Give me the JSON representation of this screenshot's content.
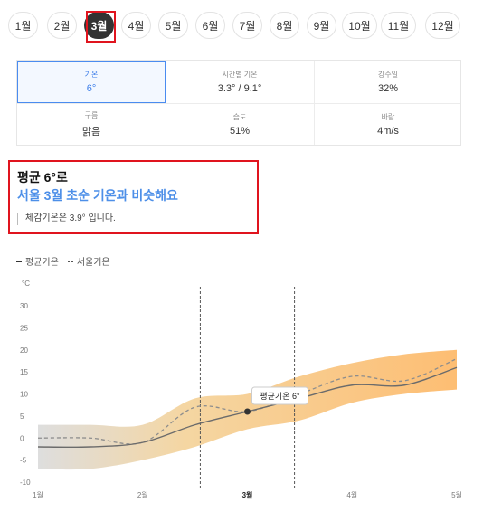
{
  "months": [
    "1월",
    "2월",
    "3월",
    "4월",
    "5월",
    "6월",
    "7월",
    "8월",
    "9월",
    "10월",
    "11월",
    "12월"
  ],
  "active_month_index": 2,
  "stats": [
    {
      "label": "기온",
      "value": "6°",
      "selected": true
    },
    {
      "label": "시간별 기온",
      "value": "3.3° / 9.1°",
      "selected": false
    },
    {
      "label": "강수일",
      "value": "32%",
      "selected": false
    },
    {
      "label": "구름",
      "value": "맑음",
      "selected": false
    },
    {
      "label": "습도",
      "value": "51%",
      "selected": false
    },
    {
      "label": "바람",
      "value": "4m/s",
      "selected": false
    }
  ],
  "summary": {
    "title": "평균 6°로",
    "subtitle": "서울 3월 초순 기온과 비슷해요",
    "note": "체감기온은 3.9° 입니다."
  },
  "legend": {
    "avg": "평균기온",
    "past": "서울기온"
  },
  "tooltip": "평균기온 6°",
  "colors": {
    "accent": "#4d8fe8",
    "band_top": "#fdb25a",
    "band_bottom": "#d6d6d6",
    "highlight": "#e0141e"
  },
  "chart_data": {
    "type": "area",
    "yunit": "°C",
    "ylim": [
      -10,
      30
    ],
    "yticks": [
      -10,
      -5,
      0,
      5,
      10,
      15,
      20,
      25,
      30
    ],
    "xticks": [
      "1월",
      "2월",
      "3월",
      "4월",
      "5월"
    ],
    "x": [
      1.0,
      1.5,
      2.0,
      2.5,
      3.0,
      3.5,
      4.0,
      4.5,
      5.0
    ],
    "series": [
      {
        "name": "평균기온",
        "values": [
          -2,
          -2,
          -1,
          3,
          6,
          9,
          12,
          12,
          16
        ]
      },
      {
        "name": "서울기온",
        "values": [
          0,
          0,
          -1,
          7,
          6,
          10,
          14,
          13,
          18
        ]
      }
    ],
    "band_high": [
      3,
      3,
      3,
      9,
      10,
      14,
      17,
      19,
      20
    ],
    "band_low": [
      -7,
      -7,
      -5,
      -2,
      2,
      4,
      8,
      10,
      11
    ],
    "marker": {
      "x": 3.0,
      "y": 6
    }
  }
}
